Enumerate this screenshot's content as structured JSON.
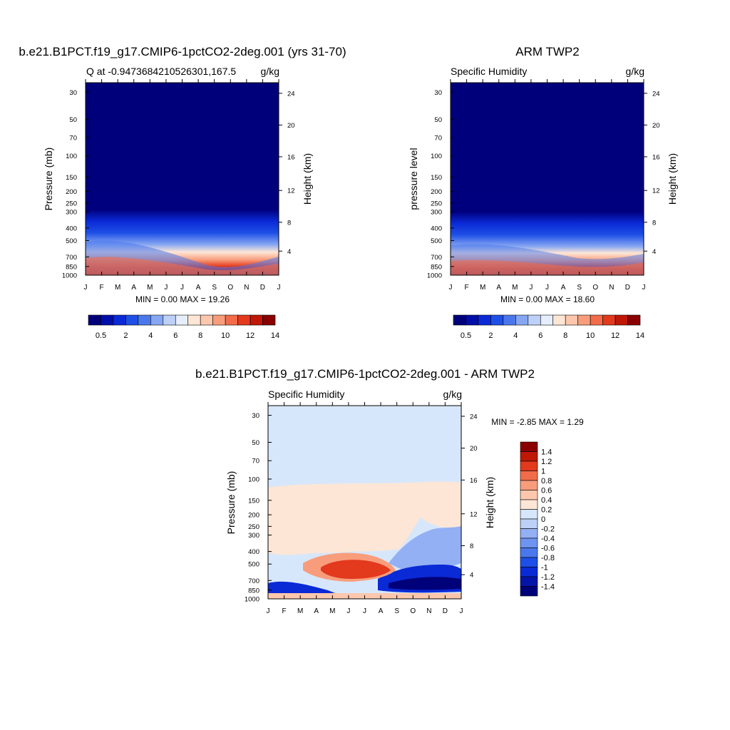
{
  "chart_data": [
    {
      "type": "heatmap",
      "title": "b.e21.B1PCT.f19_g17.CMIP6-1pctCO2-2deg.001 (yrs 31-70)",
      "left_label": "Q at -0.9473684210526301,167.5",
      "right_label": "g/kg",
      "ylabel": "Pressure (mb)",
      "ylabel_right": "Height (km)",
      "months": [
        "J",
        "F",
        "M",
        "A",
        "M",
        "J",
        "J",
        "A",
        "S",
        "O",
        "N",
        "D",
        "J"
      ],
      "pressure_ticks": [
        "30",
        "50",
        "70",
        "100",
        "150",
        "200",
        "250",
        "300",
        "400",
        "500",
        "700",
        "850",
        "1000"
      ],
      "height_ticks": [
        "24",
        "20",
        "16",
        "12",
        "8",
        "4"
      ],
      "stats": "MIN =   0.00 MAX =  19.26",
      "min": 0.0,
      "max": 19.26,
      "colorbar_labels": [
        "0.5",
        "2",
        "4",
        "6",
        "8",
        "10",
        "12",
        "14"
      ]
    },
    {
      "type": "heatmap",
      "title": "ARM TWP2",
      "left_label": "Specific Humidity",
      "right_label": "g/kg",
      "ylabel": "pressure level",
      "ylabel_right": "Height (km)",
      "months": [
        "J",
        "F",
        "M",
        "A",
        "M",
        "J",
        "J",
        "A",
        "S",
        "O",
        "N",
        "D",
        "J"
      ],
      "pressure_ticks": [
        "30",
        "50",
        "70",
        "100",
        "150",
        "200",
        "250",
        "300",
        "400",
        "500",
        "700",
        "850",
        "1000"
      ],
      "height_ticks": [
        "24",
        "20",
        "16",
        "12",
        "8",
        "4"
      ],
      "stats": "MIN =   0.00 MAX =  18.60",
      "min": 0.0,
      "max": 18.6,
      "colorbar_labels": [
        "0.5",
        "2",
        "4",
        "6",
        "8",
        "10",
        "12",
        "14"
      ]
    },
    {
      "type": "heatmap",
      "title": "b.e21.B1PCT.f19_g17.CMIP6-1pctCO2-2deg.001 - ARM TWP2",
      "left_label": "Specific Humidity",
      "right_label": "g/kg",
      "ylabel": "Pressure (mb)",
      "ylabel_right": "Height (km)",
      "months": [
        "J",
        "F",
        "M",
        "A",
        "M",
        "J",
        "J",
        "A",
        "S",
        "O",
        "N",
        "D",
        "J"
      ],
      "pressure_ticks": [
        "30",
        "50",
        "70",
        "100",
        "150",
        "200",
        "250",
        "300",
        "400",
        "500",
        "700",
        "850",
        "1000"
      ],
      "height_ticks": [
        "24",
        "20",
        "16",
        "12",
        "8",
        "4"
      ],
      "stats": "MIN =  -2.85 MAX =   1.29",
      "min": -2.85,
      "max": 1.29,
      "colorbar_labels": [
        "1.4",
        "1.2",
        "1",
        "0.8",
        "0.6",
        "0.4",
        "0.2",
        "0",
        "-0.2",
        "-0.4",
        "-0.6",
        "-0.8",
        "-1",
        "-1.2",
        "-1.4"
      ]
    }
  ],
  "colors": {
    "abs_scale": [
      "#00007a",
      "#000ea8",
      "#0a2ad6",
      "#1e4fe6",
      "#4a78ec",
      "#86a6f2",
      "#bcd0f8",
      "#e6eefc",
      "#fde6d6",
      "#fcc7ad",
      "#f89d7c",
      "#f36c4a",
      "#e3391d",
      "#bf1806",
      "#8a0000"
    ],
    "diff_scale": [
      "#00007a",
      "#0514a8",
      "#0a2ad6",
      "#1e4fe6",
      "#4a78ec",
      "#6f93f0",
      "#94b0f4",
      "#bcd0f8",
      "#d7e7fb",
      "#fde6d6",
      "#fcc7ad",
      "#f89d7c",
      "#f36c4a",
      "#e3391d",
      "#bf1806",
      "#8a0000"
    ]
  }
}
